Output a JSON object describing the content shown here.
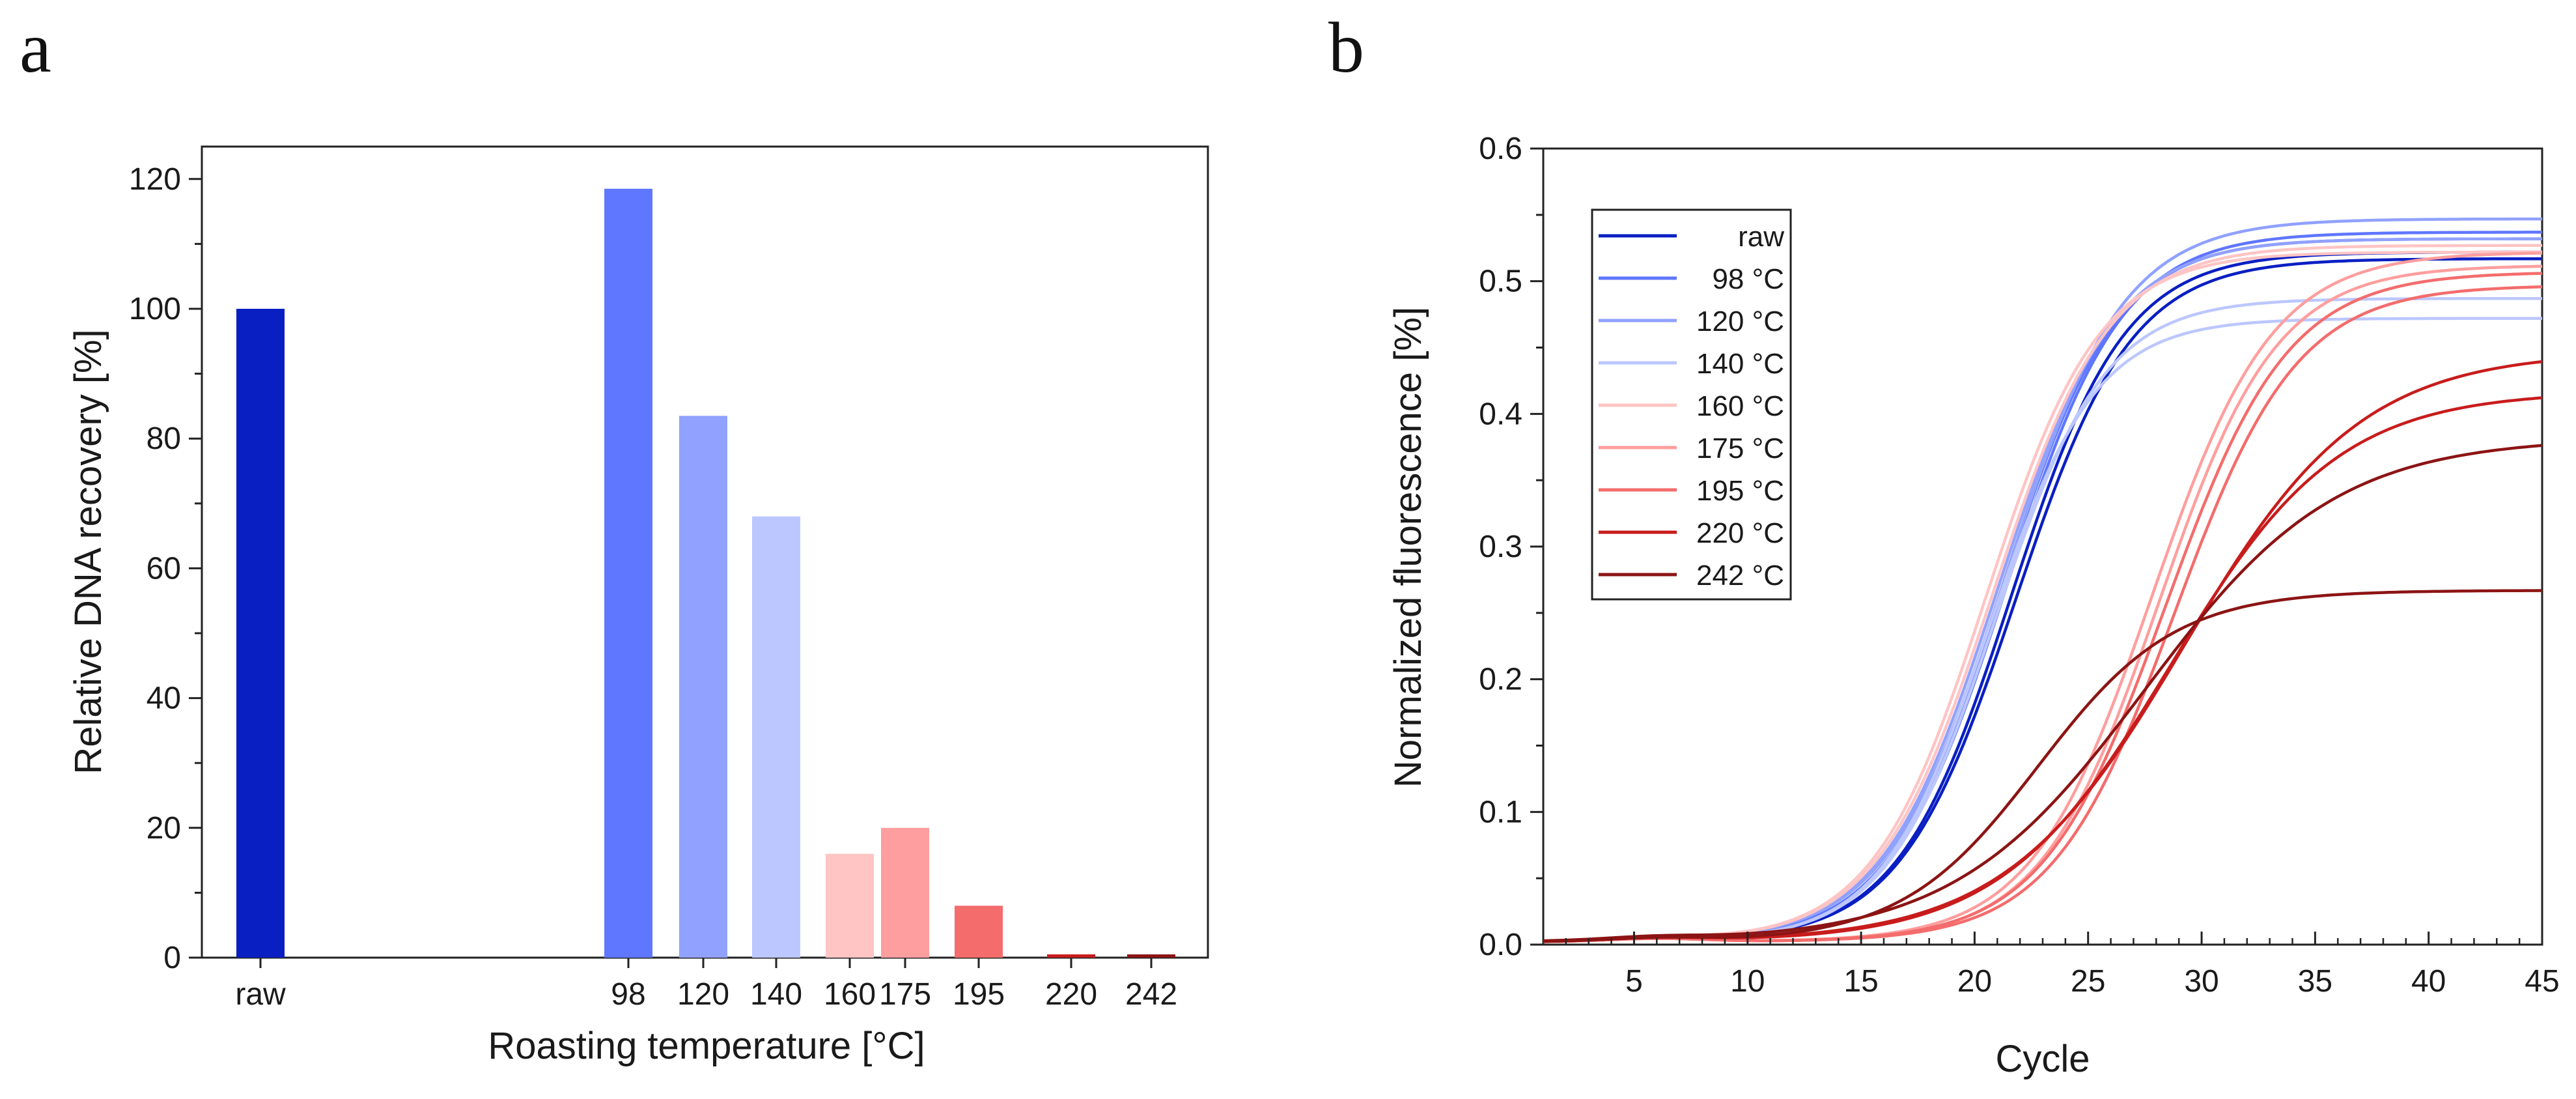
{
  "figure": {
    "panel_a": "a",
    "panel_b": "b"
  },
  "chart_data": [
    {
      "type": "bar",
      "panel": "a",
      "xlabel": "Roasting temperature [°C]",
      "ylabel": "Relative DNA recovery [%]",
      "categories": [
        "raw",
        "98",
        "120",
        "140",
        "160",
        "175",
        "195",
        "220",
        "242"
      ],
      "values": [
        100,
        118.5,
        83.5,
        68,
        16,
        20,
        8,
        0.5,
        0.5
      ],
      "colors": [
        "#0a1fc2",
        "#5f76ff",
        "#90a1ff",
        "#bcc7ff",
        "#ffc4c4",
        "#ff9e9e",
        "#f46c6c",
        "#c81c1c",
        "#8c1414"
      ],
      "yticks": [
        0,
        20,
        40,
        60,
        80,
        100,
        120
      ],
      "ylim": [
        0,
        120
      ],
      "grid": false
    },
    {
      "type": "line",
      "panel": "b",
      "xlabel": "Cycle",
      "ylabel": "Normalized fluorescence [%]",
      "xlim": [
        1,
        45
      ],
      "ylim": [
        0,
        0.6
      ],
      "xticks": [
        5,
        10,
        15,
        20,
        25,
        30,
        35,
        40,
        45
      ],
      "yticks": [
        "0.0",
        "0.1",
        "0.2",
        "0.3",
        "0.4",
        "0.5",
        "0.6"
      ],
      "legend_position": "top-left",
      "grid": false,
      "series": [
        {
          "name": "raw",
          "color": "#0a1fc2",
          "curves": [
            {
              "plateau": 0.515,
              "midpoint": 21.8,
              "slope": 2.55
            },
            {
              "plateau": 0.52,
              "midpoint": 21.6,
              "slope": 2.5
            }
          ]
        },
        {
          "name": " 98 °C",
          "color": "#5f76ff",
          "curves": [
            {
              "plateau": 0.535,
              "midpoint": 21.4,
              "slope": 2.55
            },
            {
              "plateau": 0.53,
              "midpoint": 21.2,
              "slope": 2.5
            }
          ]
        },
        {
          "name": "120 °C",
          "color": "#90a1ff",
          "curves": [
            {
              "plateau": 0.545,
              "midpoint": 21.3,
              "slope": 2.6
            },
            {
              "plateau": 0.53,
              "midpoint": 21.0,
              "slope": 2.55
            }
          ]
        },
        {
          "name": "140 °C",
          "color": "#bcc7ff",
          "curves": [
            {
              "plateau": 0.47,
              "midpoint": 20.6,
              "slope": 2.35
            },
            {
              "plateau": 0.485,
              "midpoint": 20.9,
              "slope": 2.4
            }
          ]
        },
        {
          "name": "160 °C",
          "color": "#ffc4c4",
          "curves": [
            {
              "plateau": 0.525,
              "midpoint": 20.8,
              "slope": 2.55
            },
            {
              "plateau": 0.52,
              "midpoint": 20.5,
              "slope": 2.5
            }
          ]
        },
        {
          "name": "175 °C",
          "color": "#ff9e9e",
          "curves": [
            {
              "plateau": 0.52,
              "midpoint": 27.8,
              "slope": 2.65
            },
            {
              "plateau": 0.51,
              "midpoint": 28.1,
              "slope": 2.6
            }
          ]
        },
        {
          "name": "195 °C",
          "color": "#f46c6c",
          "curves": [
            {
              "plateau": 0.505,
              "midpoint": 28.4,
              "slope": 2.7
            },
            {
              "plateau": 0.495,
              "midpoint": 28.8,
              "slope": 2.7
            }
          ]
        },
        {
          "name": "220 °C",
          "color": "#c81c1c",
          "curves": [
            {
              "plateau": 0.445,
              "midpoint": 29.2,
              "slope": 3.9
            },
            {
              "plateau": 0.415,
              "midpoint": 28.6,
              "slope": 3.7
            }
          ]
        },
        {
          "name": "242 °C",
          "color": "#8c1414",
          "curves": [
            {
              "plateau": 0.38,
              "midpoint": 27.5,
              "slope": 4.2
            },
            {
              "plateau": 0.265,
              "midpoint": 22.8,
              "slope": 3.0
            }
          ]
        }
      ]
    }
  ]
}
